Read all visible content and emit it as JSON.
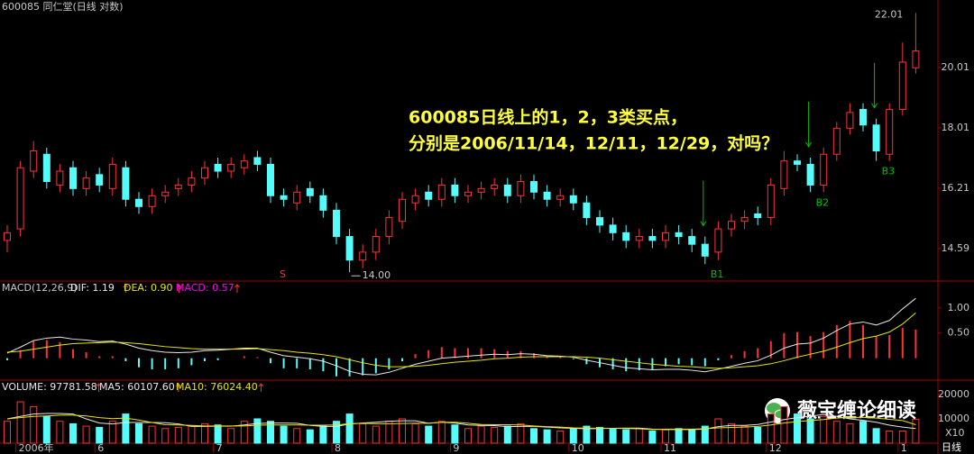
{
  "watermark": "薇宝缠论细读",
  "chart_data": [
    {
      "type": "candlestick",
      "title": "600085 同仁堂(日线 对数)",
      "annotation": [
        "600085日线上的1，2，3类买点，",
        "分别是2006/11/14，12/11，12/29，对吗？"
      ],
      "buy_labels": [
        "B1",
        "B2",
        "B3"
      ],
      "signal_label": "S",
      "low_label": "14.00",
      "high_label": "22.01",
      "categories": [
        null,
        "2006年",
        null,
        null,
        null,
        null,
        null,
        "6",
        null,
        null,
        null,
        null,
        null,
        null,
        null,
        null,
        "7",
        null,
        null,
        null,
        null,
        null,
        null,
        null,
        null,
        "8",
        null,
        null,
        null,
        null,
        null,
        null,
        null,
        null,
        "9",
        null,
        null,
        null,
        null,
        null,
        null,
        null,
        null,
        "10",
        null,
        null,
        null,
        null,
        null,
        null,
        "11",
        null,
        null,
        null,
        null,
        null,
        null,
        null,
        "12",
        null,
        null,
        null,
        null,
        null,
        null,
        null,
        null,
        null,
        "1",
        null
      ],
      "open": [
        14.8,
        15.1,
        16.7,
        17.2,
        16.3,
        16.8,
        16.2,
        16.6,
        16.2,
        16.8,
        15.9,
        15.7,
        16.0,
        16.2,
        16.3,
        16.5,
        16.9,
        16.7,
        16.8,
        17.1,
        16.9,
        16.0,
        15.8,
        16.2,
        16.0,
        15.6,
        14.9,
        14.3,
        14.5,
        14.9,
        15.3,
        15.8,
        16.1,
        15.9,
        16.3,
        16.0,
        16.1,
        16.2,
        16.3,
        16.0,
        16.4,
        16.1,
        15.9,
        16.0,
        15.8,
        15.4,
        15.2,
        15.0,
        14.8,
        14.9,
        14.8,
        15.0,
        14.9,
        14.7,
        14.5,
        15.1,
        15.3,
        15.5,
        15.4,
        16.2,
        17.0,
        16.9,
        16.3,
        17.2,
        18.0,
        18.6,
        18.1,
        17.2,
        18.6,
        20.0
      ],
      "high": [
        15.2,
        17.0,
        17.6,
        17.4,
        16.9,
        17.0,
        16.7,
        16.8,
        17.1,
        17.0,
        16.1,
        16.2,
        16.3,
        16.5,
        16.7,
        17.0,
        17.1,
        17.1,
        17.2,
        17.3,
        17.1,
        16.2,
        16.3,
        16.4,
        16.2,
        15.8,
        15.1,
        14.7,
        15.1,
        15.6,
        16.1,
        16.2,
        16.3,
        16.5,
        16.5,
        16.3,
        16.4,
        16.5,
        16.5,
        16.6,
        16.6,
        16.3,
        16.2,
        16.2,
        16.0,
        15.6,
        15.4,
        15.2,
        15.1,
        15.1,
        15.2,
        15.2,
        15.1,
        14.9,
        15.3,
        15.5,
        15.6,
        15.7,
        16.5,
        17.3,
        17.2,
        17.1,
        17.4,
        18.2,
        18.8,
        18.8,
        18.3,
        18.8,
        20.9,
        22.01
      ],
      "low": [
        14.5,
        14.9,
        16.5,
        16.2,
        16.1,
        16.0,
        16.0,
        16.1,
        16.0,
        15.7,
        15.5,
        15.5,
        15.8,
        16.0,
        16.1,
        16.3,
        16.5,
        16.5,
        16.6,
        16.7,
        15.8,
        15.7,
        15.6,
        15.8,
        15.4,
        14.7,
        14.0,
        14.1,
        14.3,
        14.7,
        15.1,
        15.6,
        15.7,
        15.7,
        15.8,
        15.8,
        15.9,
        16.0,
        15.8,
        15.8,
        15.9,
        15.7,
        15.7,
        15.6,
        15.2,
        15.0,
        14.8,
        14.6,
        14.6,
        14.6,
        14.6,
        14.7,
        14.5,
        14.2,
        14.3,
        14.9,
        15.1,
        15.2,
        15.2,
        16.0,
        16.7,
        16.1,
        16.1,
        17.0,
        17.8,
        17.9,
        17.0,
        17.0,
        18.4,
        19.8
      ],
      "close": [
        15.0,
        16.8,
        17.3,
        16.4,
        16.7,
        16.2,
        16.5,
        16.3,
        16.9,
        15.9,
        15.7,
        16.0,
        16.1,
        16.3,
        16.5,
        16.8,
        16.7,
        16.9,
        17.0,
        16.9,
        16.0,
        15.9,
        16.1,
        16.0,
        15.6,
        14.9,
        14.3,
        14.5,
        14.9,
        15.4,
        15.9,
        16.0,
        15.9,
        16.3,
        16.0,
        16.1,
        16.2,
        16.3,
        16.0,
        16.4,
        16.1,
        15.9,
        16.0,
        15.8,
        15.4,
        15.2,
        15.0,
        14.8,
        14.9,
        14.8,
        15.0,
        14.9,
        14.7,
        14.4,
        15.1,
        15.3,
        15.4,
        15.4,
        16.3,
        17.0,
        16.9,
        16.3,
        17.2,
        18.0,
        18.5,
        18.1,
        17.3,
        18.6,
        20.2,
        20.6
      ],
      "up_color": "#ff3232",
      "down_color": "#54fcfc",
      "log_scale": true,
      "ylim": [
        13.83,
        22.16
      ],
      "yticks": [
        14.59,
        16.21,
        18.01,
        20.01
      ]
    },
    {
      "type": "macd",
      "label": "MACD(12,26,9)",
      "series": [
        {
          "name": "DIF: 1.19",
          "color": "#e8e8e8",
          "values": [
            0.1,
            0.22,
            0.35,
            0.4,
            0.42,
            0.38,
            0.36,
            0.33,
            0.34,
            0.28,
            0.2,
            0.15,
            0.12,
            0.11,
            0.12,
            0.15,
            0.16,
            0.18,
            0.2,
            0.2,
            0.12,
            0.05,
            0.02,
            -0.01,
            -0.06,
            -0.15,
            -0.26,
            -0.32,
            -0.33,
            -0.28,
            -0.2,
            -0.12,
            -0.06,
            0.0,
            0.02,
            0.04,
            0.06,
            0.08,
            0.07,
            0.09,
            0.08,
            0.05,
            0.04,
            0.02,
            -0.04,
            -0.09,
            -0.14,
            -0.19,
            -0.21,
            -0.23,
            -0.22,
            -0.22,
            -0.24,
            -0.27,
            -0.22,
            -0.16,
            -0.1,
            -0.05,
            0.06,
            0.2,
            0.28,
            0.3,
            0.4,
            0.55,
            0.68,
            0.72,
            0.66,
            0.75,
            0.98,
            1.19
          ]
        },
        {
          "name": "DEA: 0.90",
          "color": "#e6e600",
          "values": [
            0.12,
            0.14,
            0.18,
            0.22,
            0.26,
            0.29,
            0.3,
            0.31,
            0.32,
            0.31,
            0.29,
            0.26,
            0.23,
            0.21,
            0.19,
            0.18,
            0.18,
            0.18,
            0.18,
            0.19,
            0.17,
            0.15,
            0.12,
            0.1,
            0.07,
            0.03,
            -0.03,
            -0.09,
            -0.14,
            -0.17,
            -0.17,
            -0.16,
            -0.14,
            -0.11,
            -0.08,
            -0.06,
            -0.04,
            -0.01,
            0.0,
            0.02,
            0.03,
            0.03,
            0.03,
            0.03,
            0.02,
            0.0,
            -0.03,
            -0.06,
            -0.09,
            -0.12,
            -0.14,
            -0.16,
            -0.17,
            -0.19,
            -0.2,
            -0.19,
            -0.17,
            -0.15,
            -0.11,
            -0.05,
            0.02,
            0.08,
            0.14,
            0.22,
            0.31,
            0.39,
            0.44,
            0.52,
            0.68,
            0.9
          ]
        },
        {
          "name": "MACD: 0.57",
          "color": "#ff00ff",
          "up_color": "#ff3232",
          "down_color": "#54fcfc",
          "values": [
            -0.04,
            0.16,
            0.34,
            0.36,
            0.32,
            0.18,
            0.12,
            0.04,
            0.04,
            -0.06,
            -0.18,
            -0.22,
            -0.22,
            -0.2,
            -0.14,
            -0.06,
            -0.04,
            0.0,
            0.04,
            0.02,
            -0.1,
            -0.2,
            -0.2,
            -0.22,
            -0.26,
            -0.36,
            -0.36,
            -0.34,
            -0.3,
            -0.22,
            -0.06,
            0.08,
            0.16,
            0.22,
            0.2,
            0.2,
            0.2,
            0.18,
            0.14,
            0.14,
            0.1,
            0.04,
            0.02,
            -0.02,
            -0.12,
            -0.18,
            -0.22,
            -0.26,
            -0.24,
            -0.22,
            -0.16,
            -0.12,
            -0.14,
            -0.16,
            -0.04,
            0.06,
            0.14,
            0.2,
            0.34,
            0.5,
            0.52,
            0.44,
            0.52,
            0.66,
            0.74,
            0.66,
            0.44,
            0.46,
            0.6,
            0.57
          ]
        }
      ],
      "ylim": [
        -0.4,
        1.48
      ],
      "yticks": [
        {
          "value": 1,
          "label": "1.00"
        },
        {
          "value": 0.5,
          "label": "0.50"
        }
      ]
    },
    {
      "type": "volume",
      "series": [
        {
          "name": "VOLUME: 97781.58",
          "color": "#e8e8e8",
          "values": [
            9000,
            17000,
            15000,
            11000,
            9000,
            8000,
            7000,
            6500,
            9000,
            12000,
            8000,
            7000,
            6000,
            6500,
            7000,
            8000,
            7500,
            6000,
            9000,
            10000,
            9000,
            7000,
            6000,
            5500,
            7000,
            9000,
            12000,
            8000,
            7000,
            9000,
            10000,
            8000,
            7000,
            9000,
            7500,
            6000,
            7000,
            6500,
            7000,
            8000,
            6000,
            5500,
            5000,
            6000,
            7000,
            6500,
            6000,
            5500,
            6000,
            5000,
            5500,
            6000,
            5500,
            7000,
            10000,
            8000,
            7000,
            6500,
            12000,
            15000,
            12000,
            10000,
            11000,
            9000,
            8000,
            9000,
            6000,
            5000,
            5000,
            9778
          ]
        },
        {
          "name": "MA5: 60107.60",
          "color": "#e8e8e8",
          "values": [
            10000,
            11000,
            12000,
            12200,
            12200,
            12000,
            10000,
            8300,
            7900,
            8500,
            8500,
            8500,
            8400,
            7900,
            6900,
            6900,
            7000,
            7000,
            7500,
            8100,
            8300,
            8300,
            8200,
            7300,
            6900,
            6900,
            7900,
            8300,
            8600,
            9000,
            9200,
            9200,
            8200,
            8600,
            8300,
            7500,
            7300,
            7200,
            6800,
            6900,
            6900,
            6600,
            6300,
            6100,
            5900,
            6000,
            6100,
            6200,
            6200,
            5800,
            5600,
            5600,
            5600,
            5800,
            6800,
            7300,
            7300,
            7700,
            8700,
            9700,
            10500,
            11100,
            11800,
            11000,
            10000,
            9400,
            8600,
            7400,
            6600,
            6011
          ]
        },
        {
          "name": "MA10: 76024.40",
          "color": "#e6e600",
          "values": [
            10000,
            10500,
            11000,
            11200,
            11500,
            11500,
            11200,
            10500,
            10100,
            10300,
            9500,
            8500,
            7600,
            7500,
            7300,
            7100,
            7100,
            7100,
            7100,
            7400,
            7500,
            7500,
            7500,
            7400,
            7400,
            7500,
            8000,
            8200,
            8000,
            8000,
            8100,
            8200,
            8200,
            8600,
            8600,
            8200,
            7700,
            7600,
            7600,
            7500,
            7100,
            6800,
            6600,
            6300,
            6200,
            6100,
            6100,
            6000,
            5900,
            5600,
            5800,
            5800,
            5800,
            5900,
            6300,
            6500,
            6600,
            6900,
            7500,
            8300,
            8900,
            9300,
            9700,
            10300,
            10600,
            10600,
            10300,
            9800,
            9300,
            7602
          ]
        }
      ],
      "ylim": [
        0,
        24800
      ],
      "yticks": [
        20000,
        10000
      ],
      "unit_label": "X10",
      "period_label": "日线"
    }
  ]
}
